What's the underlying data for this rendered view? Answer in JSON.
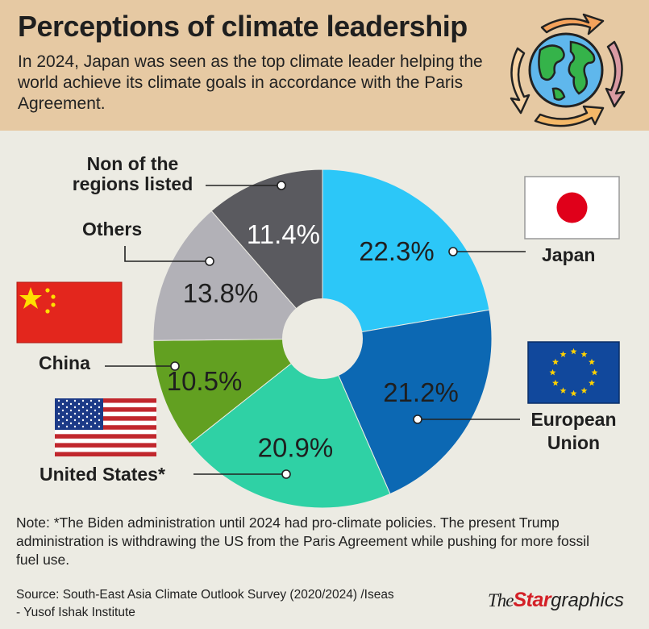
{
  "header": {
    "title": "Perceptions of climate leadership",
    "subtitle": "In 2024, Japan was seen as the top climate leader helping the world achieve its climate goals in accordance with the Paris Agreement."
  },
  "colors": {
    "header_bg": "#e6c9a3",
    "page_bg": "#ecebe3",
    "japan": "#2cc7f8",
    "eu": "#0c68b3",
    "us": "#2fd1a5",
    "china": "#62a021",
    "others": "#b2b1b7",
    "none": "#5a5a5f"
  },
  "chart_data": {
    "type": "pie",
    "donut": true,
    "unit": "%",
    "slices": [
      {
        "label": "Japan",
        "value": 22.3,
        "value_label": "22.3%"
      },
      {
        "label": "European Union",
        "value": 21.2,
        "value_label": "21.2%"
      },
      {
        "label": "United States*",
        "value": 20.9,
        "value_label": "20.9%"
      },
      {
        "label": "China",
        "value": 10.5,
        "value_label": "10.5%"
      },
      {
        "label": "Others",
        "value": 13.8,
        "value_label": "13.8%"
      },
      {
        "label": "Non of the regions listed",
        "value": 11.4,
        "value_label": "11.4%"
      }
    ]
  },
  "labels": {
    "japan": "Japan",
    "eu_line1": "European",
    "eu_line2": "Union",
    "us": "United States*",
    "china": "China",
    "others": "Others",
    "none_line1": "Non of the",
    "none_line2": "regions listed"
  },
  "icons": [
    "globe-recycle-icon",
    "japan-flag-icon",
    "eu-flag-icon",
    "us-flag-icon",
    "china-flag-icon"
  ],
  "note": "Note: *The Biden administration until 2024 had pro-climate policies. The present Trump administration is withdrawing the US from the Paris Agreement while pushing for more fossil fuel use.",
  "source": "Source: South-East Asia Climate Outlook Survey (2020/2024) /Iseas - Yusof Ishak Institute",
  "brand": {
    "the": "The",
    "star": "Star",
    "graphics": "graphics"
  }
}
